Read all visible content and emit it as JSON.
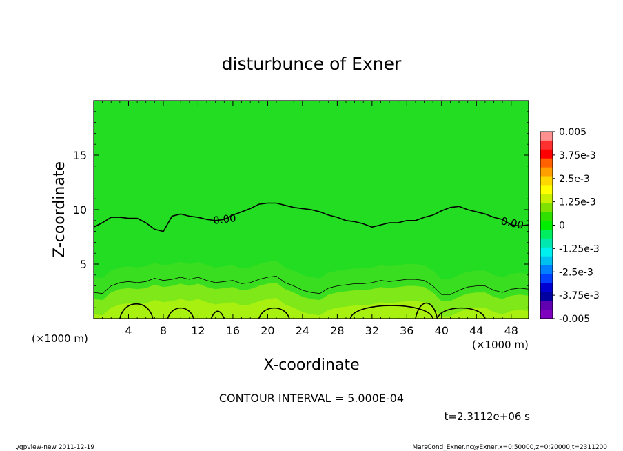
{
  "chart_data": {
    "type": "contour",
    "title": "disturbunce of Exner",
    "xlabel": "X-coordinate",
    "ylabel": "Z-coordinate",
    "x_unit_left": "(×1000 m)",
    "x_unit_right": "(×1000 m)",
    "xlim": [
      0,
      50
    ],
    "ylim": [
      0,
      20
    ],
    "x_ticks": [
      4,
      8,
      12,
      16,
      20,
      24,
      28,
      32,
      36,
      40,
      44,
      48
    ],
    "y_ticks": [
      5,
      10,
      15
    ],
    "contour_labels": [
      "0.00",
      "0.00"
    ],
    "contour_interval_text": "CONTOUR INTERVAL = 5.000E-04",
    "time_text": "t=2.3112e+06 s",
    "footer_left": "./gpview-new   2011-12-19",
    "footer_right": "MarsCond_Exner.nc@Exner,x=0:50000,z=0:20000,t=2311200",
    "colorbar": {
      "labels": [
        "0.005",
        "3.75e-3",
        "2.5e-3",
        "1.25e-3",
        "0",
        "-1.25e-3",
        "-2.5e-3",
        "-3.75e-3",
        "-0.005"
      ],
      "colors": [
        "#ff9090",
        "#ff3030",
        "#ff0000",
        "#ff6000",
        "#ffa000",
        "#ffd800",
        "#ffff00",
        "#c8f000",
        "#80e000",
        "#30e000",
        "#00ee00",
        "#00ee60",
        "#00e8b0",
        "#00f0f0",
        "#00c0f0",
        "#0080ff",
        "#0040ff",
        "#0000d0",
        "#0000a0",
        "#6000b0",
        "#8000c0"
      ]
    },
    "zero_contour_z": [
      [
        0,
        8.4
      ],
      [
        1,
        8.8
      ],
      [
        2,
        9.3
      ],
      [
        3,
        9.3
      ],
      [
        4,
        9.2
      ],
      [
        5,
        9.2
      ],
      [
        6,
        8.8
      ],
      [
        7,
        8.2
      ],
      [
        8,
        8.0
      ],
      [
        9,
        9.4
      ],
      [
        10,
        9.6
      ],
      [
        11,
        9.4
      ],
      [
        12,
        9.3
      ],
      [
        13,
        9.1
      ],
      [
        14,
        9.0
      ],
      [
        15,
        9.1
      ],
      [
        16,
        9.5
      ],
      [
        17,
        9.8
      ],
      [
        18,
        10.1
      ],
      [
        19,
        10.5
      ],
      [
        20,
        10.6
      ],
      [
        21,
        10.6
      ],
      [
        22,
        10.4
      ],
      [
        23,
        10.2
      ],
      [
        24,
        10.1
      ],
      [
        25,
        10.0
      ],
      [
        26,
        9.8
      ],
      [
        27,
        9.5
      ],
      [
        28,
        9.3
      ],
      [
        29,
        9.0
      ],
      [
        30,
        8.9
      ],
      [
        31,
        8.7
      ],
      [
        32,
        8.4
      ],
      [
        33,
        8.6
      ],
      [
        34,
        8.8
      ],
      [
        35,
        8.8
      ],
      [
        36,
        9.0
      ],
      [
        37,
        9.0
      ],
      [
        38,
        9.3
      ],
      [
        39,
        9.5
      ],
      [
        40,
        9.9
      ],
      [
        41,
        10.2
      ],
      [
        42,
        10.3
      ],
      [
        43,
        10.0
      ],
      [
        44,
        9.8
      ],
      [
        45,
        9.6
      ],
      [
        46,
        9.3
      ],
      [
        47,
        9.1
      ],
      [
        48,
        8.6
      ],
      [
        49,
        8.5
      ],
      [
        50,
        8.6
      ]
    ],
    "thin_contour_z": [
      [
        0,
        2.4
      ],
      [
        1,
        2.3
      ],
      [
        2,
        3.0
      ],
      [
        3,
        3.3
      ],
      [
        4,
        3.4
      ],
      [
        5,
        3.3
      ],
      [
        6,
        3.4
      ],
      [
        7,
        3.7
      ],
      [
        8,
        3.5
      ],
      [
        9,
        3.6
      ],
      [
        10,
        3.8
      ],
      [
        11,
        3.6
      ],
      [
        12,
        3.8
      ],
      [
        13,
        3.5
      ],
      [
        14,
        3.3
      ],
      [
        15,
        3.4
      ],
      [
        16,
        3.5
      ],
      [
        17,
        3.2
      ],
      [
        18,
        3.3
      ],
      [
        19,
        3.6
      ],
      [
        20,
        3.8
      ],
      [
        21,
        3.9
      ],
      [
        22,
        3.3
      ],
      [
        23,
        3.0
      ],
      [
        24,
        2.6
      ],
      [
        25,
        2.4
      ],
      [
        26,
        2.3
      ],
      [
        27,
        2.8
      ],
      [
        28,
        3.0
      ],
      [
        29,
        3.1
      ],
      [
        30,
        3.2
      ],
      [
        31,
        3.2
      ],
      [
        32,
        3.3
      ],
      [
        33,
        3.5
      ],
      [
        34,
        3.4
      ],
      [
        35,
        3.5
      ],
      [
        36,
        3.6
      ],
      [
        37,
        3.6
      ],
      [
        38,
        3.5
      ],
      [
        39,
        3.0
      ],
      [
        40,
        2.2
      ],
      [
        41,
        2.2
      ],
      [
        42,
        2.6
      ],
      [
        43,
        2.9
      ],
      [
        44,
        3.0
      ],
      [
        45,
        3.0
      ],
      [
        46,
        2.6
      ],
      [
        47,
        2.4
      ],
      [
        48,
        2.7
      ],
      [
        49,
        2.8
      ],
      [
        50,
        2.7
      ]
    ]
  }
}
